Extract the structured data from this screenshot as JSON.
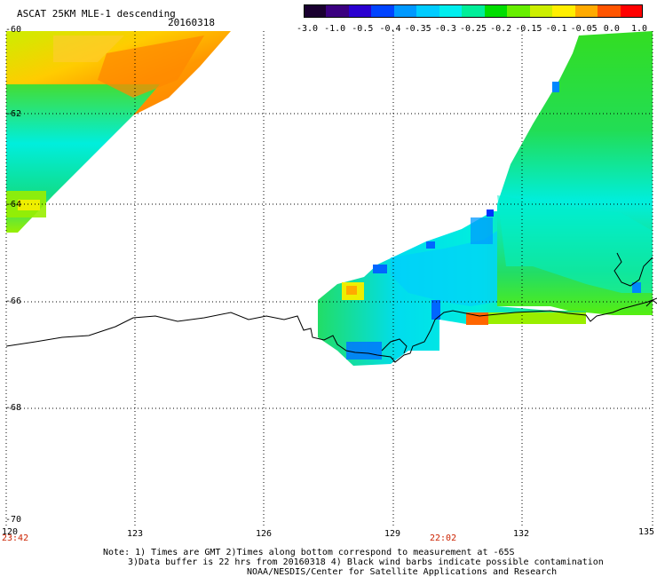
{
  "header": {
    "product": "ASCAT 25KM MLE-1 descending",
    "date": "20160318"
  },
  "colorbar": {
    "labels": [
      "-3.0",
      "-1.0",
      "-0.5",
      "-0.4",
      "-0.35",
      "-0.3",
      "-0.25",
      "-0.2",
      "-0.15",
      "-0.1",
      "-0.05",
      "0.0",
      "1.0"
    ],
    "colors": [
      "#1a0030",
      "#3b0080",
      "#2a00d0",
      "#0044ff",
      "#0099ff",
      "#00ccff",
      "#00eeee",
      "#00ee99",
      "#00dd00",
      "#66ee00",
      "#ccee00",
      "#ffee00",
      "#ffaa00",
      "#ff5500",
      "#ff0000"
    ]
  },
  "map": {
    "lat_labels": [
      "-60",
      "-62",
      "-64",
      "-66",
      "-68",
      "-70"
    ],
    "lon_labels": [
      "120",
      "123",
      "126",
      "129",
      "132",
      "135"
    ],
    "time_labels": [
      "23:42",
      "22:02"
    ]
  },
  "notes": {
    "line1": "Note: 1) Times are GMT 2)Times along bottom correspond to measurement at -65S",
    "line2": "3)Data buffer is 22 hrs from 20160318 4) Black wind barbs indicate possible contamination",
    "line3": "NOAA/NESDIS/Center for Satellite Applications and Research"
  }
}
